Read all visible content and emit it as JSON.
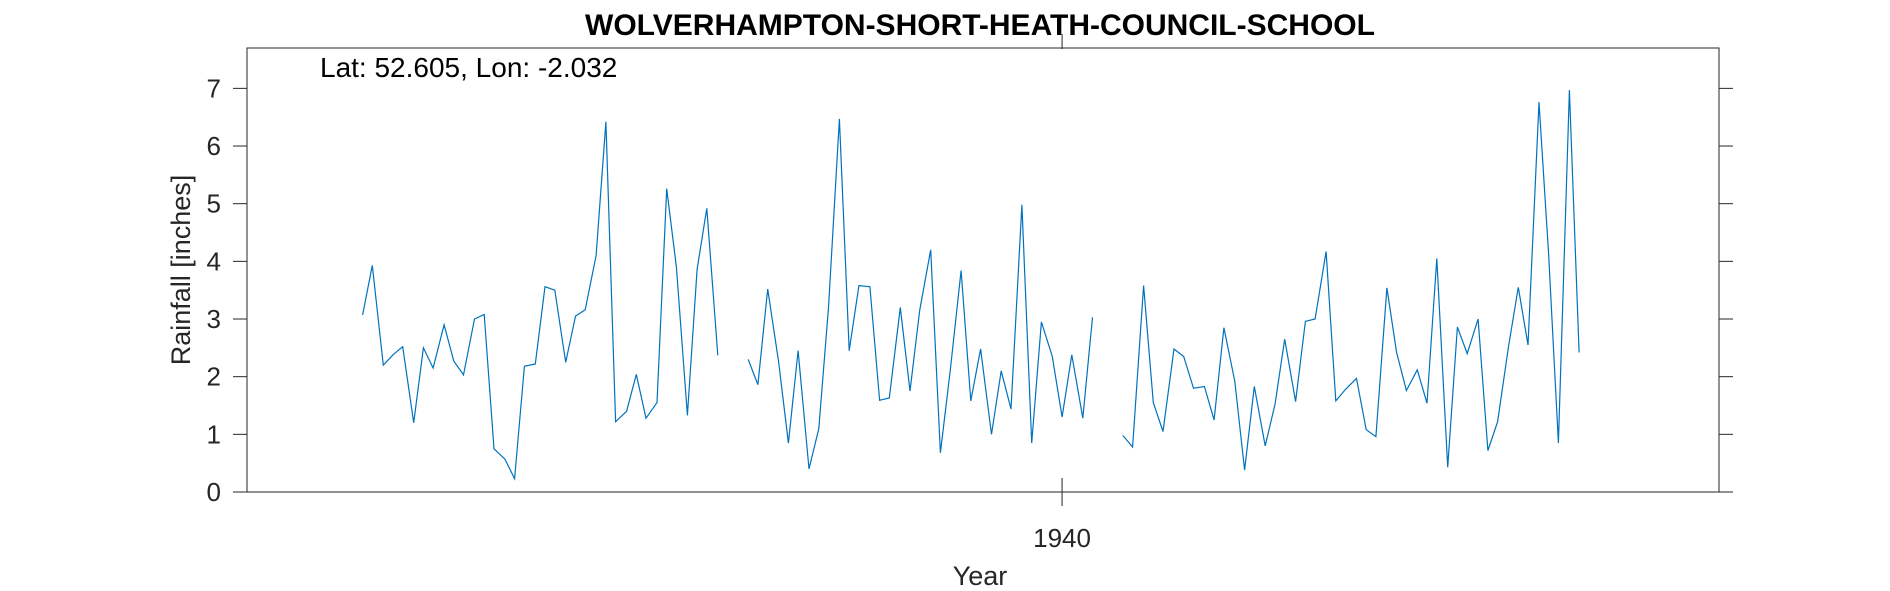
{
  "chart_data": {
    "type": "line",
    "title": "WOLVERHAMPTON-SHORT-HEATH-COUNCIL-SCHOOL",
    "annotation": "Lat: 52.605, Lon: -2.032",
    "xlabel": "Year",
    "ylabel": "Rainfall [inches]",
    "ylim": [
      0,
      7.7
    ],
    "yticks": [
      0,
      1,
      2,
      3,
      4,
      5,
      6,
      7
    ],
    "xlim": [
      1933.3,
      1945.4
    ],
    "xticks": [
      1940
    ],
    "xtick_labels": [
      "1940"
    ],
    "grid": false,
    "line_color": "#0072BD",
    "series": [
      {
        "values": [
          [
            1934.25,
            3.07
          ],
          [
            1934.33,
            3.93
          ],
          [
            1934.42,
            2.2
          ],
          [
            1934.5,
            2.38
          ],
          [
            1934.58,
            2.52
          ],
          [
            1934.67,
            1.2
          ],
          [
            1934.75,
            2.5
          ],
          [
            1934.83,
            2.15
          ],
          [
            1934.92,
            2.9
          ],
          [
            1935.0,
            2.27
          ],
          [
            1935.08,
            2.03
          ],
          [
            1935.17,
            3.0
          ],
          [
            1935.25,
            3.08
          ],
          [
            1935.33,
            0.75
          ],
          [
            1935.42,
            0.57
          ],
          [
            1935.5,
            0.23
          ],
          [
            1935.58,
            2.18
          ],
          [
            1935.67,
            2.22
          ],
          [
            1935.75,
            3.56
          ],
          [
            1935.83,
            3.5
          ],
          [
            1935.92,
            2.25
          ],
          [
            1936.0,
            3.05
          ],
          [
            1936.08,
            3.16
          ],
          [
            1936.17,
            4.1
          ],
          [
            1936.25,
            6.42
          ],
          [
            1936.33,
            1.22
          ],
          [
            1936.42,
            1.4
          ],
          [
            1936.5,
            2.04
          ],
          [
            1936.58,
            1.28
          ],
          [
            1936.67,
            1.55
          ],
          [
            1936.75,
            5.26
          ],
          [
            1936.83,
            3.9
          ],
          [
            1936.92,
            1.33
          ],
          [
            1937.0,
            3.86
          ],
          [
            1937.08,
            4.92
          ],
          [
            1937.17,
            2.37
          ],
          null,
          [
            1937.42,
            2.3
          ],
          [
            1937.5,
            1.86
          ],
          [
            1937.58,
            3.52
          ],
          [
            1937.67,
            2.26
          ],
          [
            1937.75,
            0.85
          ],
          [
            1937.83,
            2.45
          ],
          [
            1937.92,
            0.4
          ],
          [
            1938.0,
            1.1
          ],
          [
            1938.08,
            3.2
          ],
          [
            1938.17,
            6.47
          ],
          [
            1938.25,
            2.45
          ],
          [
            1938.33,
            3.58
          ],
          [
            1938.42,
            3.56
          ],
          [
            1938.5,
            1.59
          ],
          [
            1938.58,
            1.63
          ],
          [
            1938.67,
            3.2
          ],
          [
            1938.75,
            1.75
          ],
          [
            1938.83,
            3.15
          ],
          [
            1938.92,
            4.2
          ],
          [
            1939.0,
            0.68
          ],
          [
            1939.08,
            2.1
          ],
          [
            1939.17,
            3.84
          ],
          [
            1939.25,
            1.58
          ],
          [
            1939.33,
            2.48
          ],
          [
            1939.42,
            1.0
          ],
          [
            1939.5,
            2.1
          ],
          [
            1939.58,
            1.44
          ],
          [
            1939.67,
            4.98
          ],
          [
            1939.75,
            0.85
          ],
          [
            1939.83,
            2.95
          ],
          [
            1939.92,
            2.35
          ],
          [
            1940.0,
            1.3
          ],
          [
            1940.08,
            2.38
          ],
          [
            1940.17,
            1.28
          ],
          [
            1940.25,
            3.03
          ],
          null,
          [
            1940.5,
            0.98
          ],
          [
            1940.58,
            0.78
          ],
          [
            1940.67,
            3.58
          ],
          [
            1940.75,
            1.55
          ],
          [
            1940.83,
            1.05
          ],
          [
            1940.92,
            2.48
          ],
          [
            1941.0,
            2.35
          ],
          [
            1941.08,
            1.8
          ],
          [
            1941.17,
            1.83
          ],
          [
            1941.25,
            1.25
          ],
          [
            1941.33,
            2.85
          ],
          [
            1941.42,
            1.92
          ],
          [
            1941.5,
            0.38
          ],
          [
            1941.58,
            1.83
          ],
          [
            1941.67,
            0.8
          ],
          [
            1941.75,
            1.52
          ],
          [
            1941.83,
            2.65
          ],
          [
            1941.92,
            1.57
          ],
          [
            1942.0,
            2.96
          ],
          [
            1942.08,
            3.0
          ],
          [
            1942.17,
            4.17
          ],
          [
            1942.25,
            1.58
          ],
          [
            1942.33,
            1.78
          ],
          [
            1942.42,
            1.97
          ],
          [
            1942.5,
            1.08
          ],
          [
            1942.58,
            0.96
          ],
          [
            1942.67,
            3.54
          ],
          [
            1942.75,
            2.42
          ],
          [
            1942.83,
            1.76
          ],
          [
            1942.92,
            2.12
          ],
          [
            1943.0,
            1.54
          ],
          [
            1943.08,
            4.05
          ],
          [
            1943.17,
            0.43
          ],
          [
            1943.25,
            2.86
          ],
          [
            1943.33,
            2.4
          ],
          [
            1943.42,
            3.0
          ],
          [
            1943.5,
            0.72
          ],
          [
            1943.58,
            1.22
          ],
          [
            1943.67,
            2.52
          ],
          [
            1943.75,
            3.55
          ],
          [
            1943.83,
            2.55
          ],
          [
            1943.92,
            6.76
          ],
          [
            1944.0,
            4.1
          ],
          [
            1944.08,
            0.85
          ],
          [
            1944.17,
            6.97
          ],
          [
            1944.25,
            2.42
          ]
        ]
      }
    ]
  }
}
